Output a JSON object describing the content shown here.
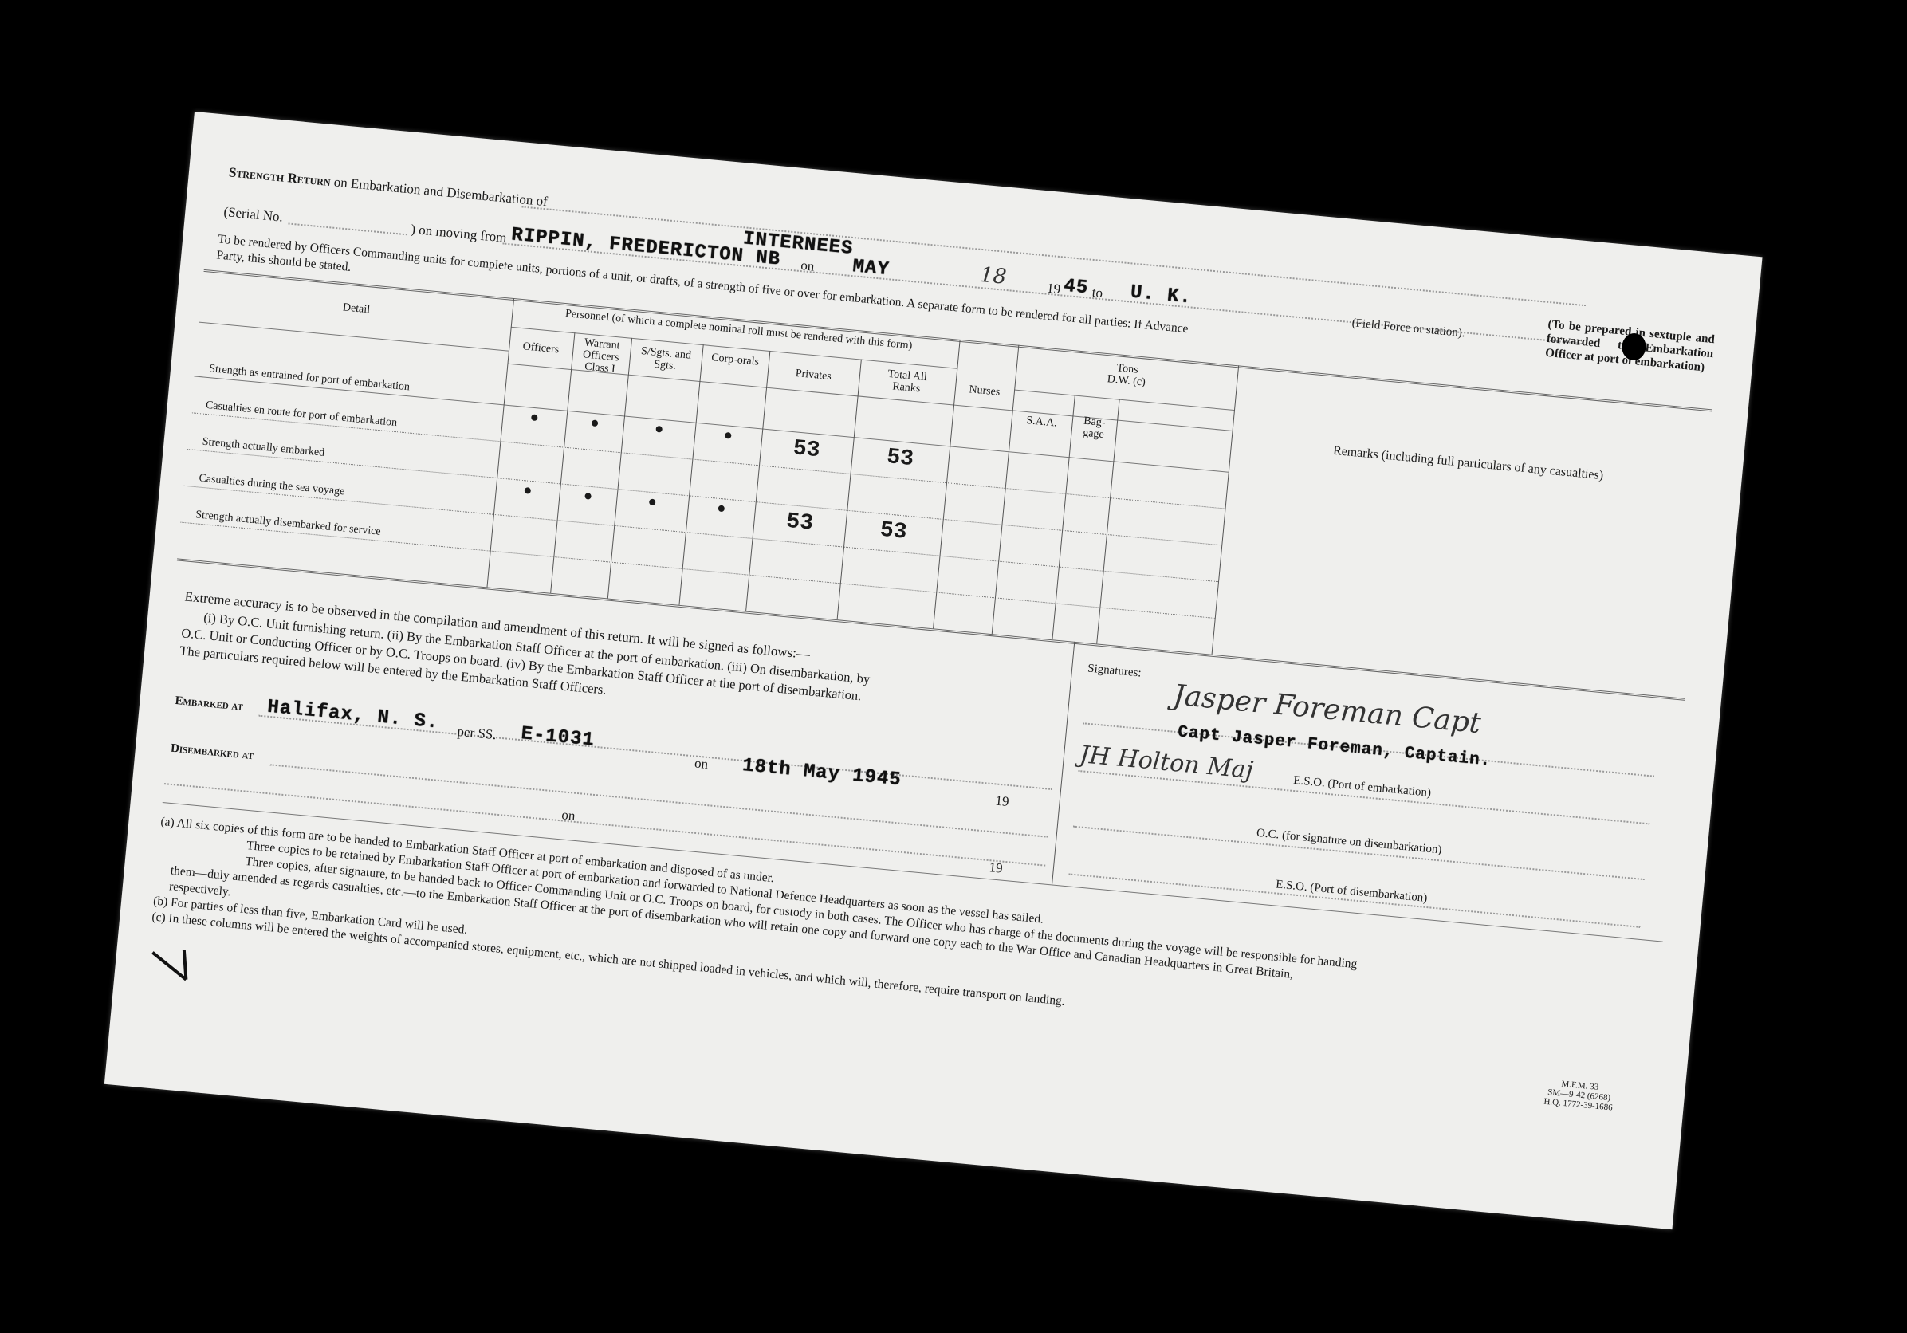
{
  "form": {
    "title_prefix": "Strength Return",
    "title_rest": "on Embarkation and Disembarkation of",
    "unit": "INTERNEES",
    "serial_label": "(Serial No.",
    "moving_from_label": ") on moving from",
    "moving_from": "RIPPIN, FREDERICTON NB",
    "on_label": "on",
    "month": "MAY",
    "day": "18",
    "year_prefix": "19",
    "year": "45",
    "to_label": "to",
    "destination": "U. K.",
    "field_force_label": "(Field Force or station).",
    "instruction_1": "To be rendered by Officers Commanding units for complete units, portions of a unit, or drafts, of a strength of five or over for embarkation.  A separate form to be rendered for all parties: If Advance",
    "instruction_2": "Party, this should be stated.",
    "side_note": "(To be prepared in sextuple and forwarded to Embarkation Officer at port of embarkation)"
  },
  "table": {
    "detail_header": "Detail",
    "personnel_header": "Personnel (of which a complete nominal roll must be rendered with this form)",
    "columns": [
      "Officers",
      "Warrant Officers Class I",
      "S/Sgts. and Sgts.",
      "Corp-orals",
      "Privates",
      "Total All Ranks"
    ],
    "nurses_header": "Nurses",
    "tons_header": "Tons D.W. (c)",
    "saa_header": "S.A.A.",
    "baggage_header": "Bag-gage",
    "remarks_header": "Remarks (including full particulars of any casualties)",
    "rows": [
      {
        "label": "Strength as entrained for port of embarkation",
        "values": [
          "•",
          "•",
          "•",
          "•",
          "53",
          "53"
        ]
      },
      {
        "label": "Casualties en route for port of embarkation",
        "values": [
          "",
          "",
          "",
          "",
          "",
          ""
        ]
      },
      {
        "label": "Strength actually embarked",
        "values": [
          "•",
          "•",
          "•",
          "•",
          "53",
          "53"
        ]
      },
      {
        "label": "Casualties during the sea voyage",
        "values": [
          "",
          "",
          "",
          "",
          "",
          ""
        ]
      },
      {
        "label": "Strength actually disembarked for service",
        "values": [
          "",
          "",
          "",
          "",
          "",
          ""
        ]
      }
    ]
  },
  "signing": {
    "accuracy": "Extreme accuracy is to be observed in the compilation and amendment of this return.  It will be signed as follows:—",
    "line_i": "(i) By O.C. Unit furnishing return.  (ii) By the Embarkation Staff Officer at the port of embarkation.  (iii) On disembarkation, by",
    "line_ii": "O.C. Unit or Conducting Officer or by O.C. Troops on board.  (iv) By the Embarkation Staff Officer at the port of disembarkation.",
    "line_iii": "The particulars required below will be entered by the Embarkation Staff Officers.",
    "embarked_label": "Embarked at",
    "embarked_at": "Halifax, N. S.",
    "per_ss_label": "per SS.",
    "ship": "E-1031",
    "on_label": "on",
    "embarked_date": "18th May 1945",
    "year_prefix": "19",
    "disembarked_label": "Disembarked at",
    "on_label_2": "on",
    "year_prefix_2": "19"
  },
  "signatures": {
    "label": "Signatures:",
    "officer_typed": "Capt Jasper Foreman, Captain.",
    "sig1": "Jasper Foreman Capt",
    "sig2": "JH Holton Maj",
    "eso_embark": "E.S.O. (Port of embarkation)",
    "oc_disembark": "O.C. (for signature on disembarkation)",
    "eso_disembark": "E.S.O. (Port of disembarkation)"
  },
  "notes": {
    "a": "(a) All six copies of this form are to be handed to Embarkation Staff Officer at port of embarkation and disposed of as under.",
    "a1": "Three copies to be retained by Embarkation Staff Officer at port of embarkation and forwarded to National Defence Headquarters as soon as the vessel has sailed.",
    "a2": "Three copies, after signature, to be handed back to Officer Commanding Unit or O.C. Troops on board, for custody in both cases.  The Officer who has charge of the documents during the voyage will be responsible for handing",
    "a3": "them—duly amended as regards casualties, etc.—to the Embarkation Staff Officer at the port of disembarkation who will retain one copy and forward one copy each to the War Office and Canadian Headquarters in Great Britain,",
    "a4": "respectively.",
    "b": "(b) For parties of less than five, Embarkation Card will be used.",
    "c": "(c) In these columns will be entered the weights of accompanied stores, equipment, etc., which are not shipped loaded in vehicles, and which will, therefore, require transport on landing.",
    "code_1": "M.F.M. 33",
    "code_2": "SM—9-42 (6268)",
    "code_3": "H.Q. 1772-39-1686"
  }
}
